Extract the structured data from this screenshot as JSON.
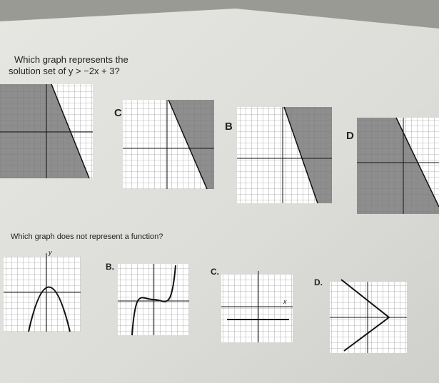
{
  "question1": {
    "lines": [
      "Which graph represents the",
      "solution set of y > −2x + 3?"
    ],
    "options": [
      "C",
      "B",
      "D"
    ]
  },
  "question2": {
    "text": "Which graph does not represent a function?",
    "options": [
      "B.",
      "C.",
      "D."
    ],
    "axis_y": "y",
    "axis_x": "x"
  }
}
